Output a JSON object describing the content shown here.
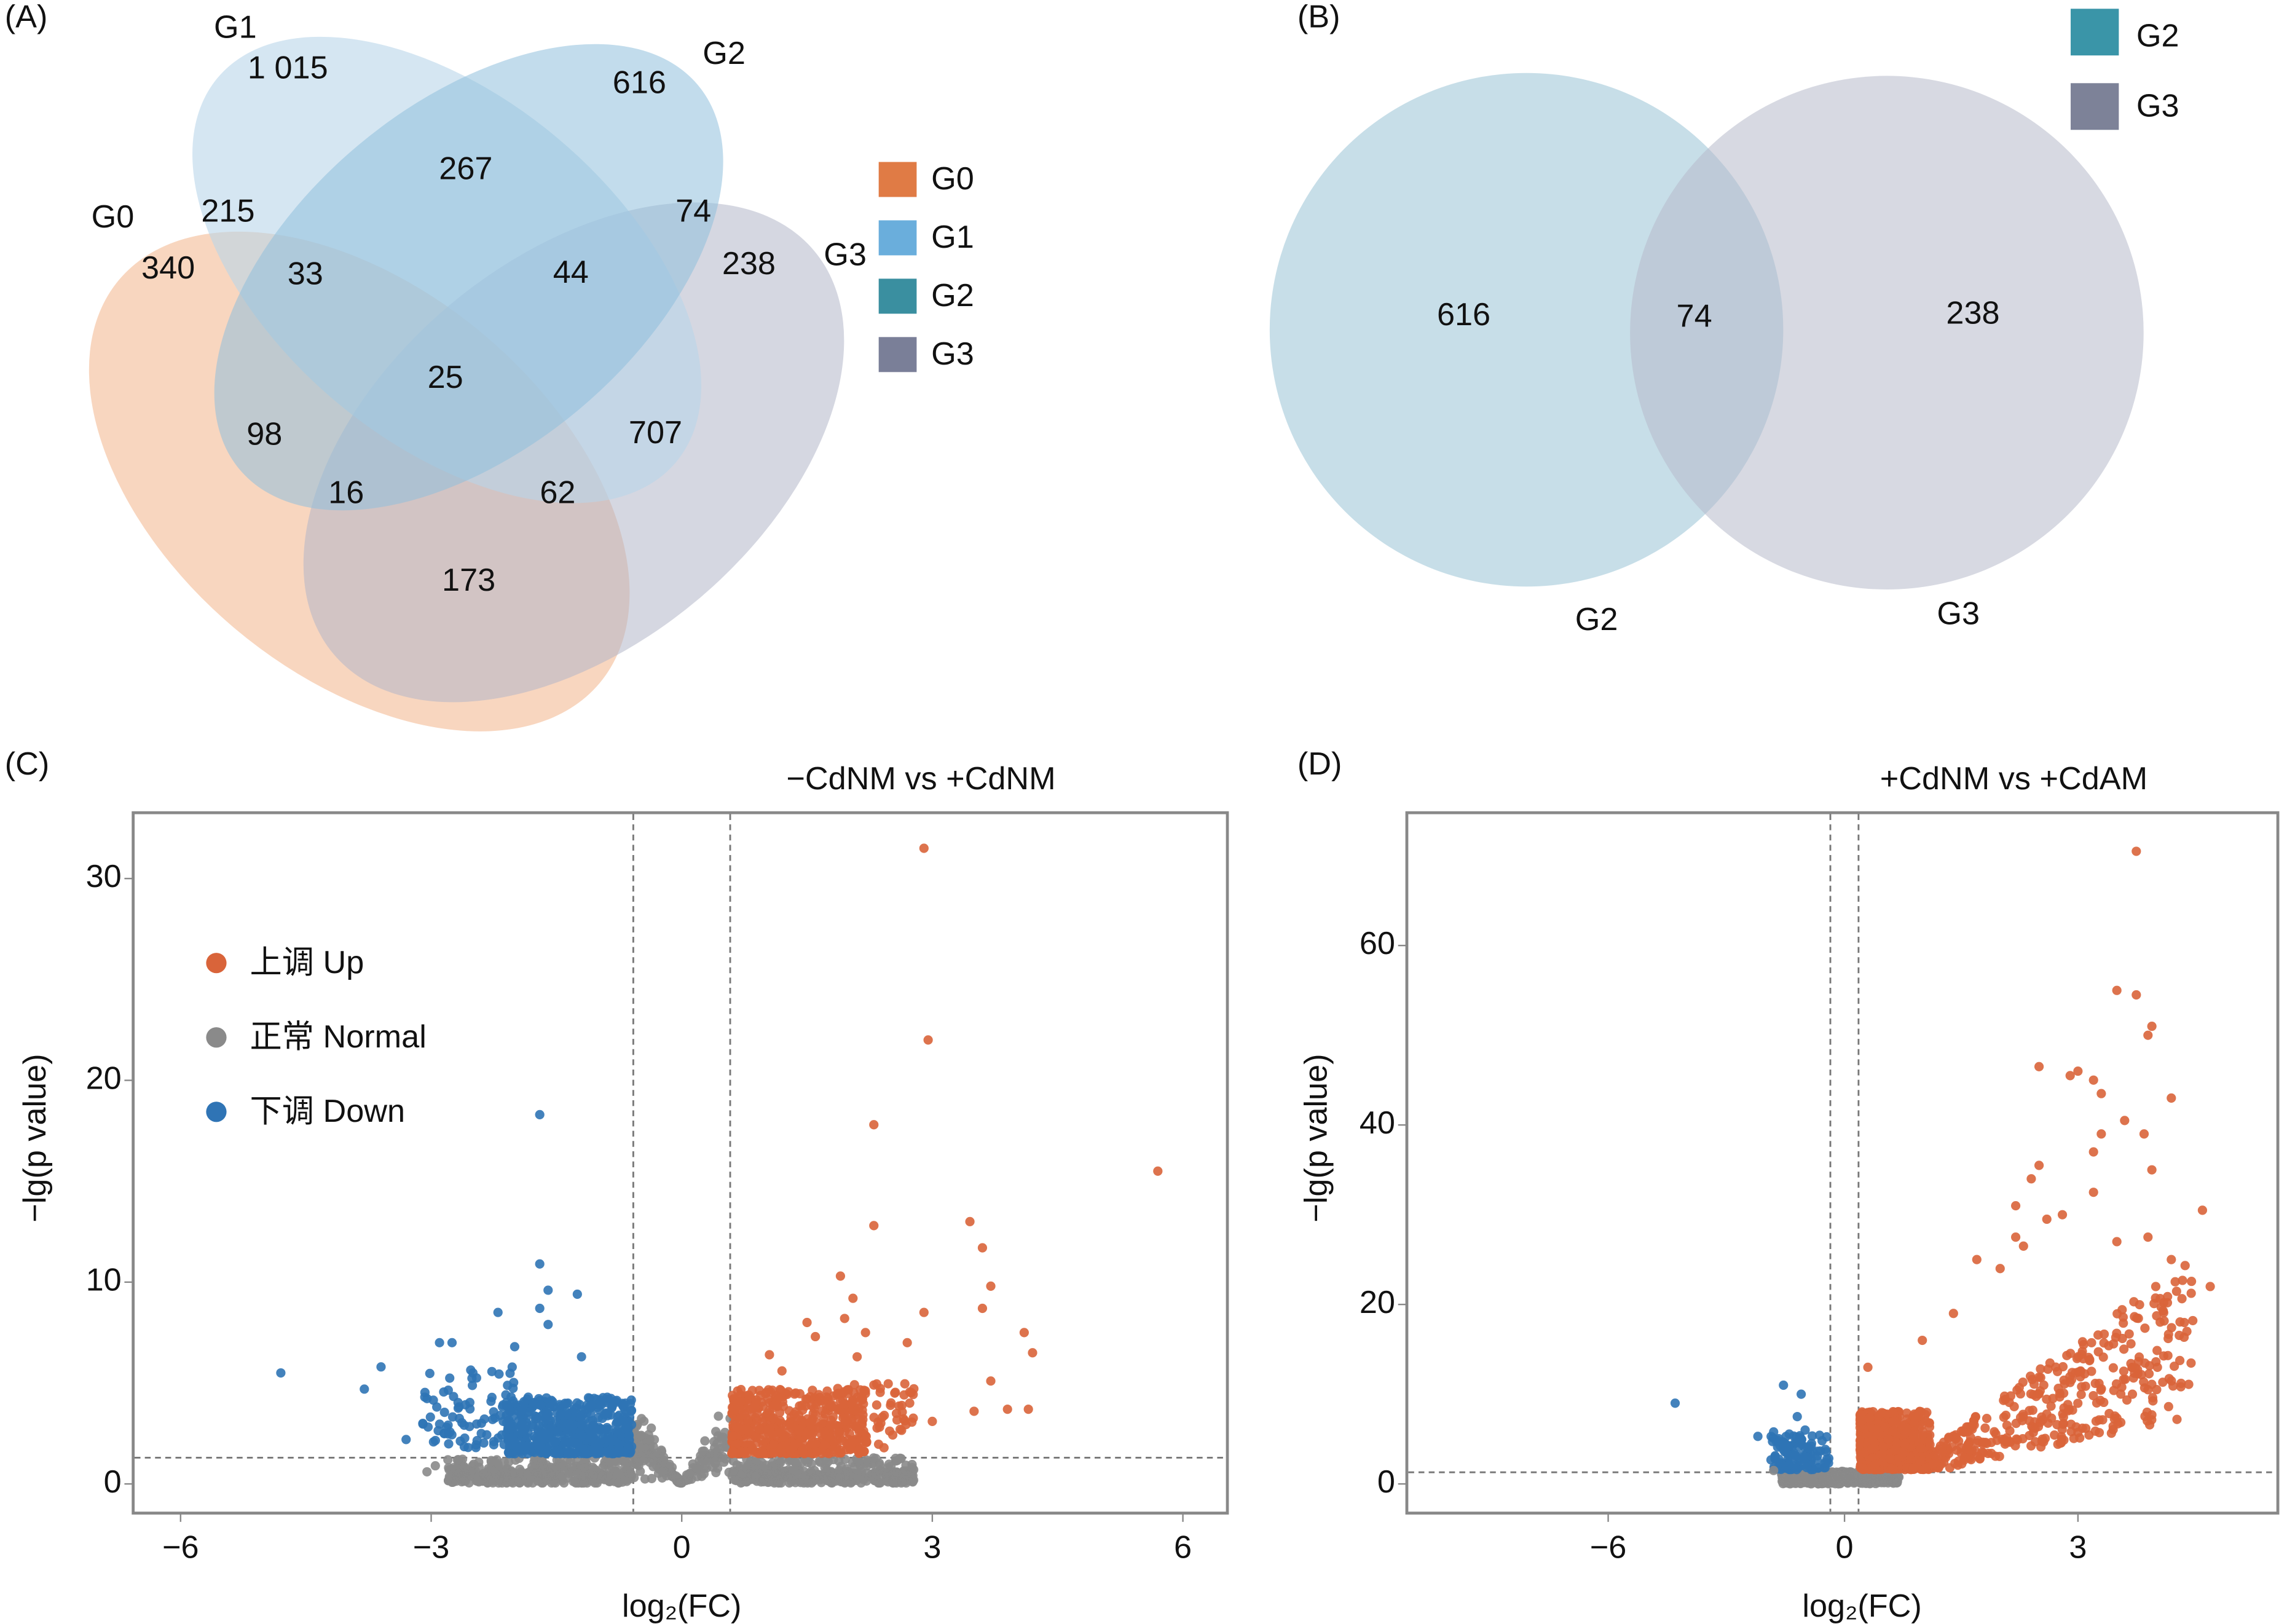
{
  "panels": {
    "a": "(A)",
    "b": "(B)",
    "c": "(C)",
    "d": "(D)"
  },
  "venn_a": {
    "sets": [
      "G0",
      "G1",
      "G2",
      "G3"
    ],
    "colors": {
      "G0": "#e07b45",
      "G1": "#6aaedc",
      "G2": "#3a8fa0",
      "G3": "#7a7f98"
    },
    "legend": [
      "G0",
      "G1",
      "G2",
      "G3"
    ],
    "regions": {
      "G1_only": "1 015",
      "G2_only": "616",
      "G1_G2": "267",
      "G0_G1": "215",
      "G2_G3": "74",
      "G0_only": "340",
      "G0_G1_G2": "33",
      "G1_G2_G3": "44",
      "G3_only": "238",
      "all": "25",
      "G0_G2": "98",
      "G1_G3": "707",
      "G0_G2_G3": "16",
      "G0_G1_G3": "62",
      "G0_G3": "173"
    }
  },
  "venn_b": {
    "sets": [
      "G2",
      "G3"
    ],
    "colors": {
      "G2": "#3a95a8",
      "G3": "#7d8298"
    },
    "legend": [
      "G2",
      "G3"
    ],
    "regions": {
      "G2_only": "616",
      "G2_G3": "74",
      "G3_only": "238"
    }
  },
  "chart_data": [
    {
      "type": "scatter",
      "title": "−CdNM vs +CdNM",
      "xlabel": "log₂(FC)",
      "ylabel": "−lg(p value)",
      "xlim": [
        -6.5,
        6.5
      ],
      "ylim": [
        -1.5,
        33.5
      ],
      "xticks": [
        "−6",
        "−3",
        "0",
        "3",
        "6"
      ],
      "xtick_values": [
        -6,
        -3,
        0,
        3,
        6
      ],
      "yticks": [
        "0",
        "10",
        "20",
        "30"
      ],
      "ytick_values": [
        0,
        10,
        20,
        30
      ],
      "thresholds": {
        "x": [
          -0.58,
          0.58
        ],
        "y": 1.3
      },
      "grid": false,
      "legend_position": "top-left",
      "legend": [
        {
          "label": "上调 Up",
          "color": "#d9643a"
        },
        {
          "label": "正常 Normal",
          "color": "#8a8a8a"
        },
        {
          "label": "下调 Down",
          "color": "#2f74b5"
        }
      ],
      "series": [
        {
          "name": "上调 Up",
          "points": [
            [
              2.9,
              31.5
            ],
            [
              2.95,
              22
            ],
            [
              2.3,
              17.8
            ],
            [
              5.7,
              15.5
            ],
            [
              2.3,
              12.8
            ],
            [
              3.45,
              13
            ],
            [
              3.6,
              11.7
            ],
            [
              3.7,
              9.8
            ],
            [
              1.9,
              10.3
            ],
            [
              2.05,
              9.2
            ],
            [
              3.6,
              8.7
            ],
            [
              2.9,
              8.5
            ],
            [
              4.1,
              7.5
            ],
            [
              4.2,
              6.5
            ],
            [
              1.95,
              8.2
            ],
            [
              1.5,
              8
            ],
            [
              2.2,
              7.5
            ],
            [
              2.7,
              7
            ],
            [
              1.05,
              6.4
            ],
            [
              3.7,
              5.1
            ],
            [
              3.5,
              3.6
            ],
            [
              3.9,
              3.7
            ],
            [
              4.15,
              3.7
            ],
            [
              3.0,
              3.1
            ],
            [
              2.3,
              4.9
            ],
            [
              2.55,
              4.5
            ],
            [
              1.6,
              7.3
            ],
            [
              2.1,
              6.3
            ],
            [
              1.2,
              5.6
            ]
          ]
        },
        {
          "name": "正常 Normal",
          "points": [
            [
              -3.05,
              0.6
            ],
            [
              -2.95,
              0.9
            ]
          ]
        },
        {
          "name": "下调 Down",
          "points": [
            [
              -1.7,
              18.3
            ],
            [
              -1.7,
              10.9
            ],
            [
              -1.6,
              9.6
            ],
            [
              -1.25,
              9.4
            ],
            [
              -2.2,
              8.5
            ],
            [
              -1.7,
              8.7
            ],
            [
              -2.9,
              7
            ],
            [
              -2.75,
              7
            ],
            [
              -4.8,
              5.5
            ],
            [
              -3.6,
              5.8
            ],
            [
              -3.8,
              4.7
            ],
            [
              -3.1,
              3
            ],
            [
              -2.0,
              6.8
            ],
            [
              -1.2,
              6.3
            ],
            [
              -2.5,
              5.5
            ],
            [
              -3.3,
              2.2
            ],
            [
              -2.4,
              2.5
            ],
            [
              -1.6,
              7.9
            ]
          ]
        }
      ]
    },
    {
      "type": "scatter",
      "title": "+CdNM vs +CdAM",
      "xlabel": "log₂(FC)",
      "ylabel": "−lg(p value)",
      "ylim": [
        -3,
        75
      ],
      "xticks": [
        "−6",
        "0",
        "3"
      ],
      "xtick_values": [
        -6,
        0,
        3
      ],
      "yticks": [
        "0",
        "20",
        "40",
        "60"
      ],
      "ytick_values": [
        0,
        20,
        40,
        60
      ],
      "thresholds": {
        "x": [
          -0.36,
          0.18
        ],
        "y": 1.3
      },
      "grid": false,
      "series": [
        {
          "name": "上调 Up",
          "points": [
            [
              3.75,
              70.5
            ],
            [
              3.5,
              55
            ],
            [
              3.75,
              54.5
            ],
            [
              3.95,
              51
            ],
            [
              3.9,
              50
            ],
            [
              2.5,
              46.5
            ],
            [
              3.0,
              46
            ],
            [
              2.9,
              45.5
            ],
            [
              3.2,
              45
            ],
            [
              3.3,
              43.5
            ],
            [
              4.2,
              43
            ],
            [
              3.6,
              40.5
            ],
            [
              3.3,
              39
            ],
            [
              3.85,
              39
            ],
            [
              3.2,
              37
            ],
            [
              2.5,
              35.5
            ],
            [
              3.95,
              35
            ],
            [
              2.4,
              34
            ],
            [
              3.2,
              32.5
            ],
            [
              2.2,
              31
            ],
            [
              4.6,
              30.5
            ],
            [
              2.6,
              29.5
            ],
            [
              2.8,
              30
            ],
            [
              4.7,
              22
            ],
            [
              4.4,
              17
            ],
            [
              2.0,
              24
            ],
            [
              1.7,
              25
            ],
            [
              4.2,
              25
            ],
            [
              4.0,
              22
            ],
            [
              2.2,
              27.5
            ],
            [
              2.3,
              26.5
            ],
            [
              3.5,
              27
            ],
            [
              3.9,
              27.5
            ],
            [
              1.4,
              19
            ],
            [
              1.0,
              16
            ],
            [
              0.3,
              13
            ],
            [
              3.7,
              10
            ],
            [
              3.9,
              10.5
            ]
          ]
        },
        {
          "name": "正常 Normal",
          "points": [
            [
              -1.8,
              1.5
            ]
          ]
        },
        {
          "name": "下调 Down",
          "points": [
            [
              -4.3,
              9
            ],
            [
              -1.55,
              11
            ],
            [
              -1.1,
              10
            ],
            [
              -1.2,
              7.5
            ],
            [
              -1.0,
              6
            ],
            [
              -2.2,
              5.3
            ],
            [
              -1.8,
              5.8
            ]
          ]
        }
      ]
    }
  ]
}
